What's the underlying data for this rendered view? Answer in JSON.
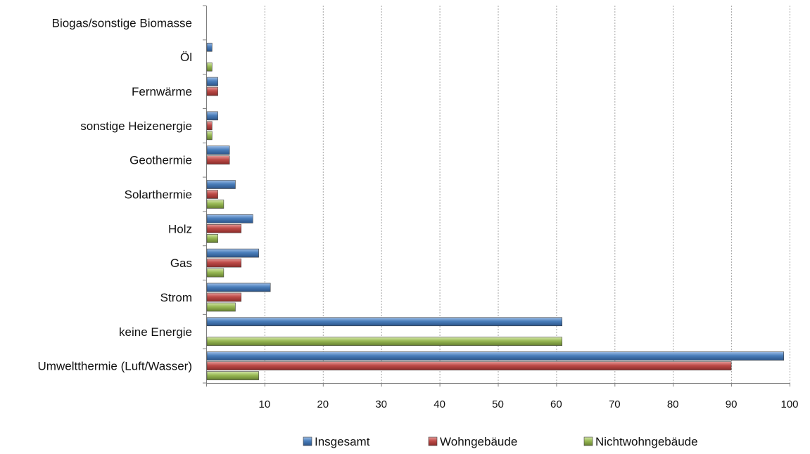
{
  "chart_data": {
    "type": "bar",
    "orientation": "horizontal",
    "title": "",
    "xlabel": "",
    "ylabel": "",
    "xlim": [
      0,
      100
    ],
    "x_ticks": [
      10,
      20,
      30,
      40,
      50,
      60,
      70,
      80,
      90,
      100
    ],
    "grid": "vertical dashed",
    "legend_position": "bottom",
    "categories": [
      "Umweltthermie (Luft/Wasser)",
      "keine Energie",
      "Strom",
      "Gas",
      "Holz",
      "Solarthermie",
      "Geothermie",
      "sonstige Heizenergie",
      "Fernwärme",
      "Öl",
      "Biogas/sonstige Biomasse"
    ],
    "series": [
      {
        "name": "Insgesamt",
        "color": "#4a7ebb",
        "values": [
          99,
          61,
          11,
          9,
          8,
          5,
          4,
          2,
          2,
          1,
          null
        ]
      },
      {
        "name": "Wohngebäude",
        "color": "#be4b48",
        "values": [
          90,
          null,
          6,
          6,
          6,
          2,
          4,
          1,
          2,
          null,
          null
        ]
      },
      {
        "name": "Nichtwohngebäude",
        "color": "#98b954",
        "values": [
          9,
          61,
          5,
          3,
          2,
          3,
          null,
          1,
          null,
          1,
          null
        ]
      }
    ]
  }
}
